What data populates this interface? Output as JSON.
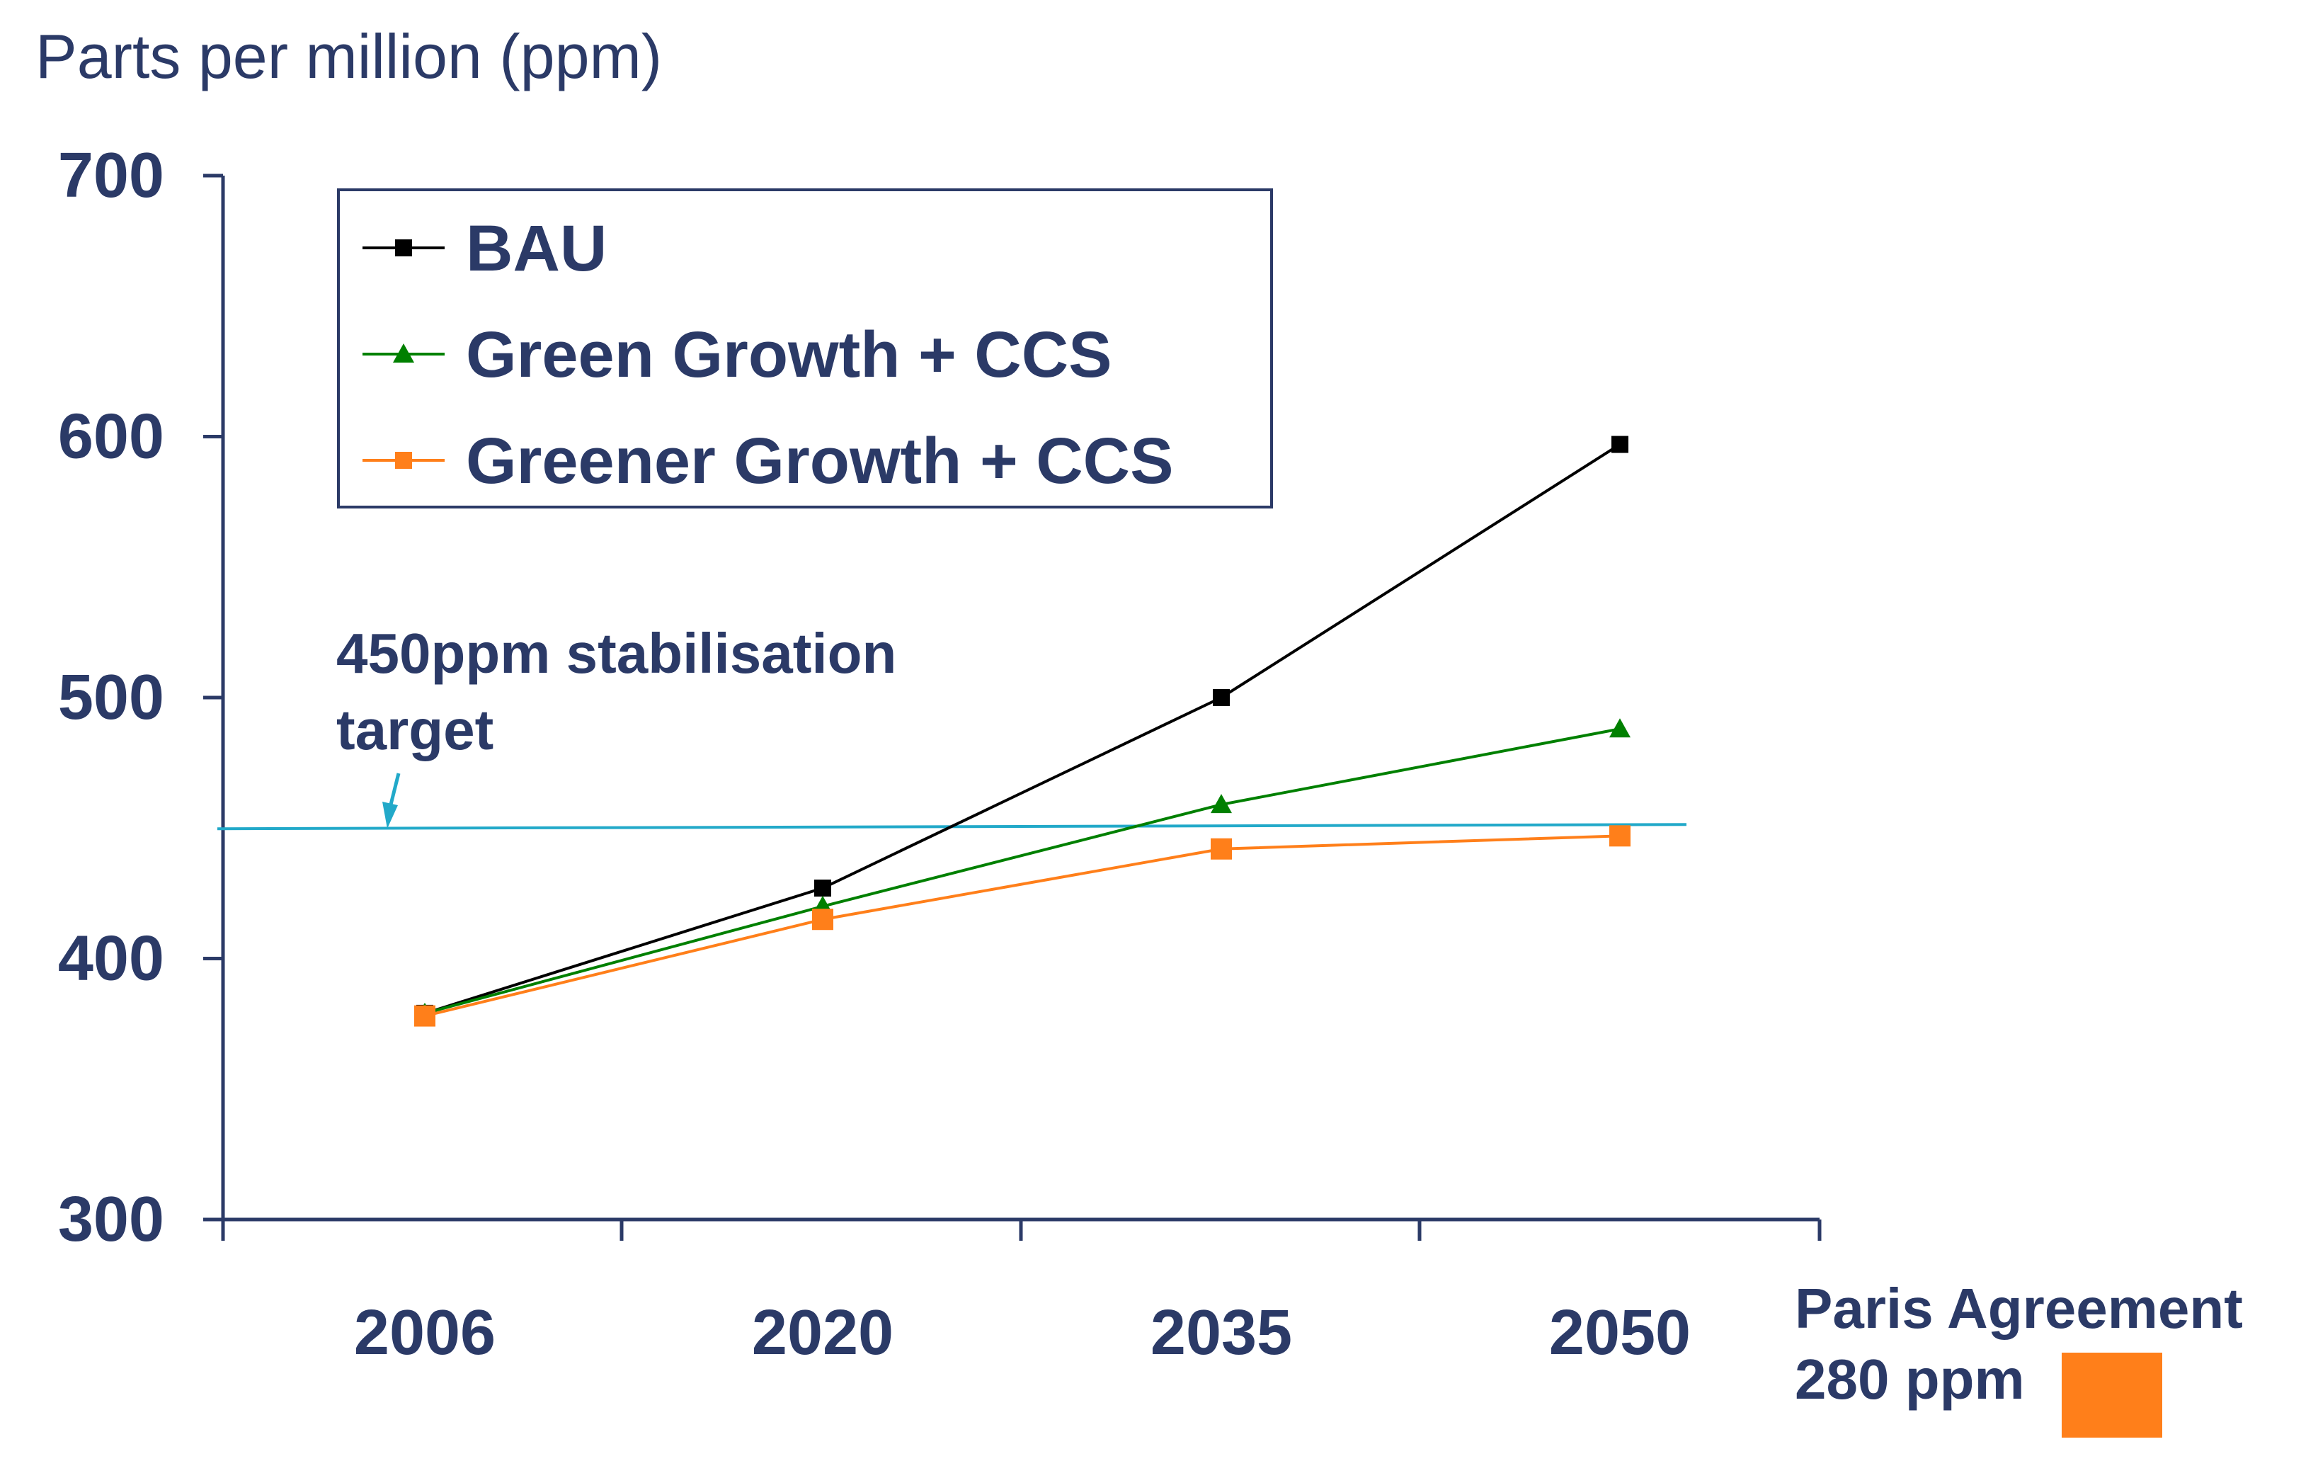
{
  "chart_data": {
    "type": "line",
    "title": "",
    "ylabel": "Parts per million (ppm)",
    "xlabel": "",
    "categories": [
      "2006",
      "2020",
      "2035",
      "2050"
    ],
    "ylim": [
      300,
      700
    ],
    "yticks": [
      300,
      400,
      500,
      600,
      700
    ],
    "series": [
      {
        "name": "BAU",
        "color": "#000000",
        "marker": "square",
        "values": [
          379,
          427,
          500,
          597
        ]
      },
      {
        "name": "Green Growth + CCS",
        "color": "#008000",
        "marker": "triangle",
        "values": [
          379,
          420,
          459,
          488
        ]
      },
      {
        "name": "Greener Growth + CCS",
        "color": "#ff7f1a",
        "marker": "square",
        "values": [
          378,
          415,
          442,
          447
        ]
      }
    ],
    "reference_line": {
      "value": 450,
      "color": "#22a9c9",
      "label_line1": "450ppm stabilisation",
      "label_line2": "target"
    },
    "annotation": {
      "line1": "Paris Agreement",
      "line2": "280 ppm",
      "swatch_color": "#ff7f1a"
    },
    "legend_position": "top-left",
    "text_color": "#2b3a67"
  }
}
